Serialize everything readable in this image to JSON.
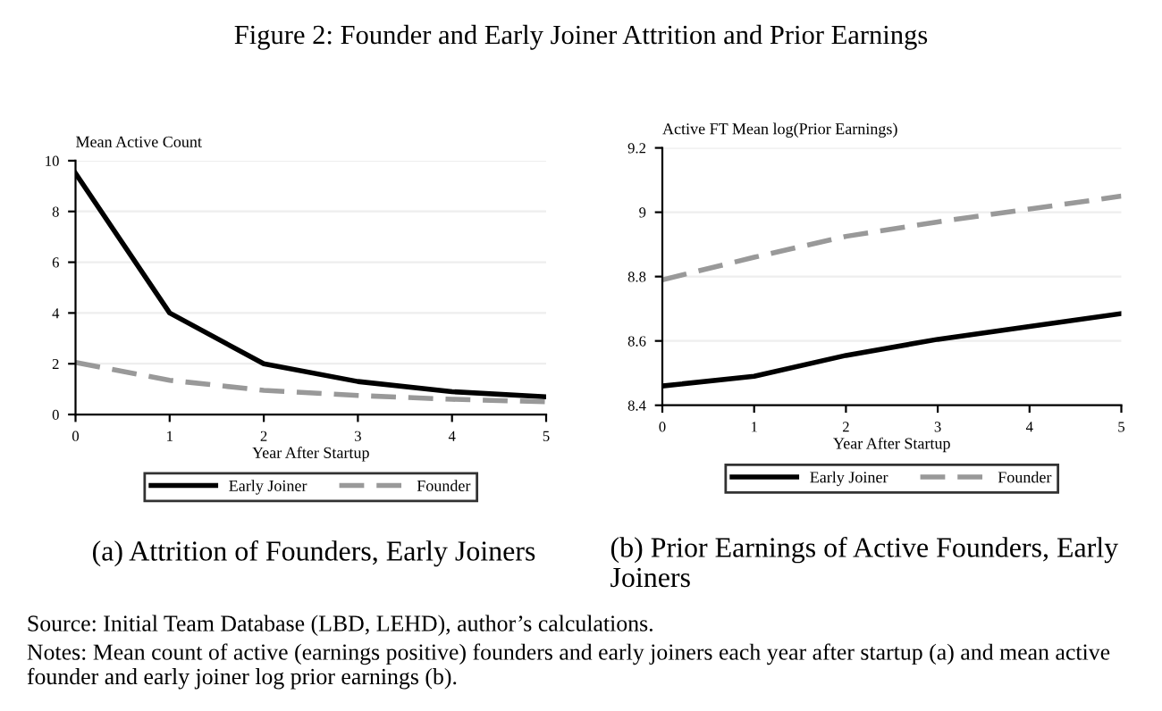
{
  "chart_data": [
    {
      "type": "line",
      "title": "(a) Attrition of Founders, Early Joiners",
      "ylabel": "Mean Active Count",
      "xlabel": "Year After Startup",
      "annotations": [
        "Figure 2: Founder and Early Joiner Attrition and Prior Earnings"
      ],
      "x": [
        0,
        1,
        2,
        3,
        4,
        5
      ],
      "series": [
        {
          "name": "Early Joiner",
          "color": "#000000",
          "line_style": "solid",
          "values": [
            9.5,
            4.0,
            2.0,
            1.3,
            0.9,
            0.7
          ]
        },
        {
          "name": "Founder",
          "color": "#999999",
          "line_style": "dashed",
          "values": [
            2.05,
            1.35,
            0.95,
            0.75,
            0.6,
            0.5
          ]
        }
      ],
      "xlim": [
        0,
        5
      ],
      "xticks": [
        0,
        1,
        2,
        3,
        4,
        5
      ],
      "ylim": [
        0,
        10
      ],
      "yticks": [
        0,
        2,
        4,
        6,
        8,
        10
      ],
      "grid": "y",
      "legend": "bottom",
      "marker": "none"
    },
    {
      "type": "line",
      "title": "(b) Prior Earnings of Active Founders, Early Joiners",
      "ylabel": "Active FT Mean log(Prior Earnings)",
      "xlabel": "Year After Startup",
      "annotations": [
        "Source: Initial Team Database (LBD, LEHD), author’s calculations.",
        "Notes: Mean count of active (earnings positive) founders and early joiners each year after startup (a) and mean active founder and early joiner log prior earnings (b)."
      ],
      "x": [
        0,
        1,
        2,
        3,
        4,
        5
      ],
      "series": [
        {
          "name": "Early Joiner",
          "color": "#000000",
          "line_style": "solid",
          "values": [
            8.46,
            8.49,
            8.555,
            8.605,
            8.645,
            8.685
          ]
        },
        {
          "name": "Founder",
          "color": "#999999",
          "line_style": "dashed",
          "values": [
            8.79,
            8.86,
            8.925,
            8.97,
            9.01,
            9.05
          ]
        }
      ],
      "xlim": [
        0,
        5
      ],
      "xticks": [
        0,
        1,
        2,
        3,
        4,
        5
      ],
      "ylim": [
        8.4,
        9.2
      ],
      "yticks": [
        8.4,
        8.6,
        8.8,
        9,
        9.2
      ],
      "grid": "y",
      "legend": "bottom",
      "marker": "none"
    }
  ]
}
